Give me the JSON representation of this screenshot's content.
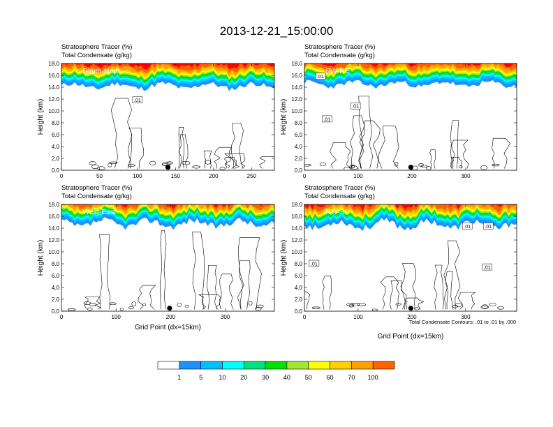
{
  "figure": {
    "title": "2013-12-21_15:00:00",
    "footnote": "Total Condensate Contours: .01 to .01 by .000"
  },
  "chart_data": {
    "type": "heatmap",
    "colors": [
      "#ffffff",
      "#1e90ff",
      "#00bfff",
      "#00ffff",
      "#00e080",
      "#00e000",
      "#a0e632",
      "#ffff00",
      "#ffd000",
      "#ffa000",
      "#ff6000",
      "#ff0000"
    ],
    "colorbar": {
      "levels": [
        1,
        5,
        10,
        20,
        30,
        40,
        50,
        60,
        70,
        100
      ]
    },
    "panels": [
      {
        "id": "south-north",
        "label": "South-North",
        "subtitle1": "Stratosphere Tracer   (%)",
        "subtitle2": "Total Condensate   (g/kg)",
        "xlabel": "",
        "ylabel": "Height (km)",
        "xlim": [
          0,
          280
        ],
        "ylim": [
          0,
          18
        ],
        "xticks": [
          0,
          50,
          100,
          150,
          200,
          250
        ],
        "yticks": [
          "0.0",
          "2.0",
          "4.0",
          "6.0",
          "8.0",
          "10.0",
          "12.0",
          "14.0",
          "16.0",
          "18.0"
        ],
        "marker_x": 140,
        "contour_labels": [
          {
            "text": ".01",
            "x": 100,
            "y": 11.8
          }
        ]
      },
      {
        "id": "sw-ne",
        "label": "SW-NE",
        "subtitle1": "Stratosphere Tracer   (%)",
        "subtitle2": "Total Condensate   (g/kg)",
        "xlabel": "",
        "ylabel": "Height (km)",
        "xlim": [
          0,
          395
        ],
        "ylim": [
          0,
          18
        ],
        "xticks": [
          0,
          100,
          200,
          300
        ],
        "yticks": [
          "0.0",
          "2.0",
          "4.0",
          "6.0",
          "8.0",
          "10.0",
          "12.0",
          "14.0",
          "16.0",
          "18.0"
        ],
        "marker_x": 198,
        "contour_labels": [
          {
            "text": ".01",
            "x": 30,
            "y": 15.8
          },
          {
            "text": ".01",
            "x": 95,
            "y": 10.8
          },
          {
            "text": ".01",
            "x": 42,
            "y": 8.6
          }
        ]
      },
      {
        "id": "west-east",
        "label": "West-East",
        "subtitle1": "Stratosphere Tracer   (%)",
        "subtitle2": "Total Condensate   (g/kg)",
        "xlabel": "Grid Point (dx=15km)",
        "ylabel": "Height (km)",
        "xlim": [
          0,
          390
        ],
        "ylim": [
          0,
          18
        ],
        "xticks": [
          0,
          100,
          200,
          300
        ],
        "yticks": [
          "0.0",
          "2.0",
          "4.0",
          "6.0",
          "8.0",
          "10.0",
          "12.0",
          "14.0",
          "16.0",
          "18.0"
        ],
        "marker_x": 198,
        "contour_labels": []
      },
      {
        "id": "nw-se",
        "label": "NW-SE",
        "subtitle1": "Stratosphere Tracer   (%)",
        "subtitle2": "Total Condensate   (g/kg)",
        "xlabel": "Grid Point (dx=15km)",
        "ylabel": "Height (km)",
        "xlim": [
          0,
          395
        ],
        "ylim": [
          0,
          18
        ],
        "xticks": [
          0,
          100,
          200,
          300
        ],
        "yticks": [
          "0.0",
          "2.0",
          "4.0",
          "6.0",
          "8.0",
          "10.0",
          "12.0",
          "14.0",
          "16.0",
          "18.0"
        ],
        "marker_x": 198,
        "contour_labels": [
          {
            "text": ".01",
            "x": 18,
            "y": 8.0
          },
          {
            "text": ".01",
            "x": 303,
            "y": 14.3
          },
          {
            "text": ".01",
            "x": 342,
            "y": 14.3
          },
          {
            "text": ".01",
            "x": 340,
            "y": 7.4
          }
        ]
      }
    ]
  }
}
